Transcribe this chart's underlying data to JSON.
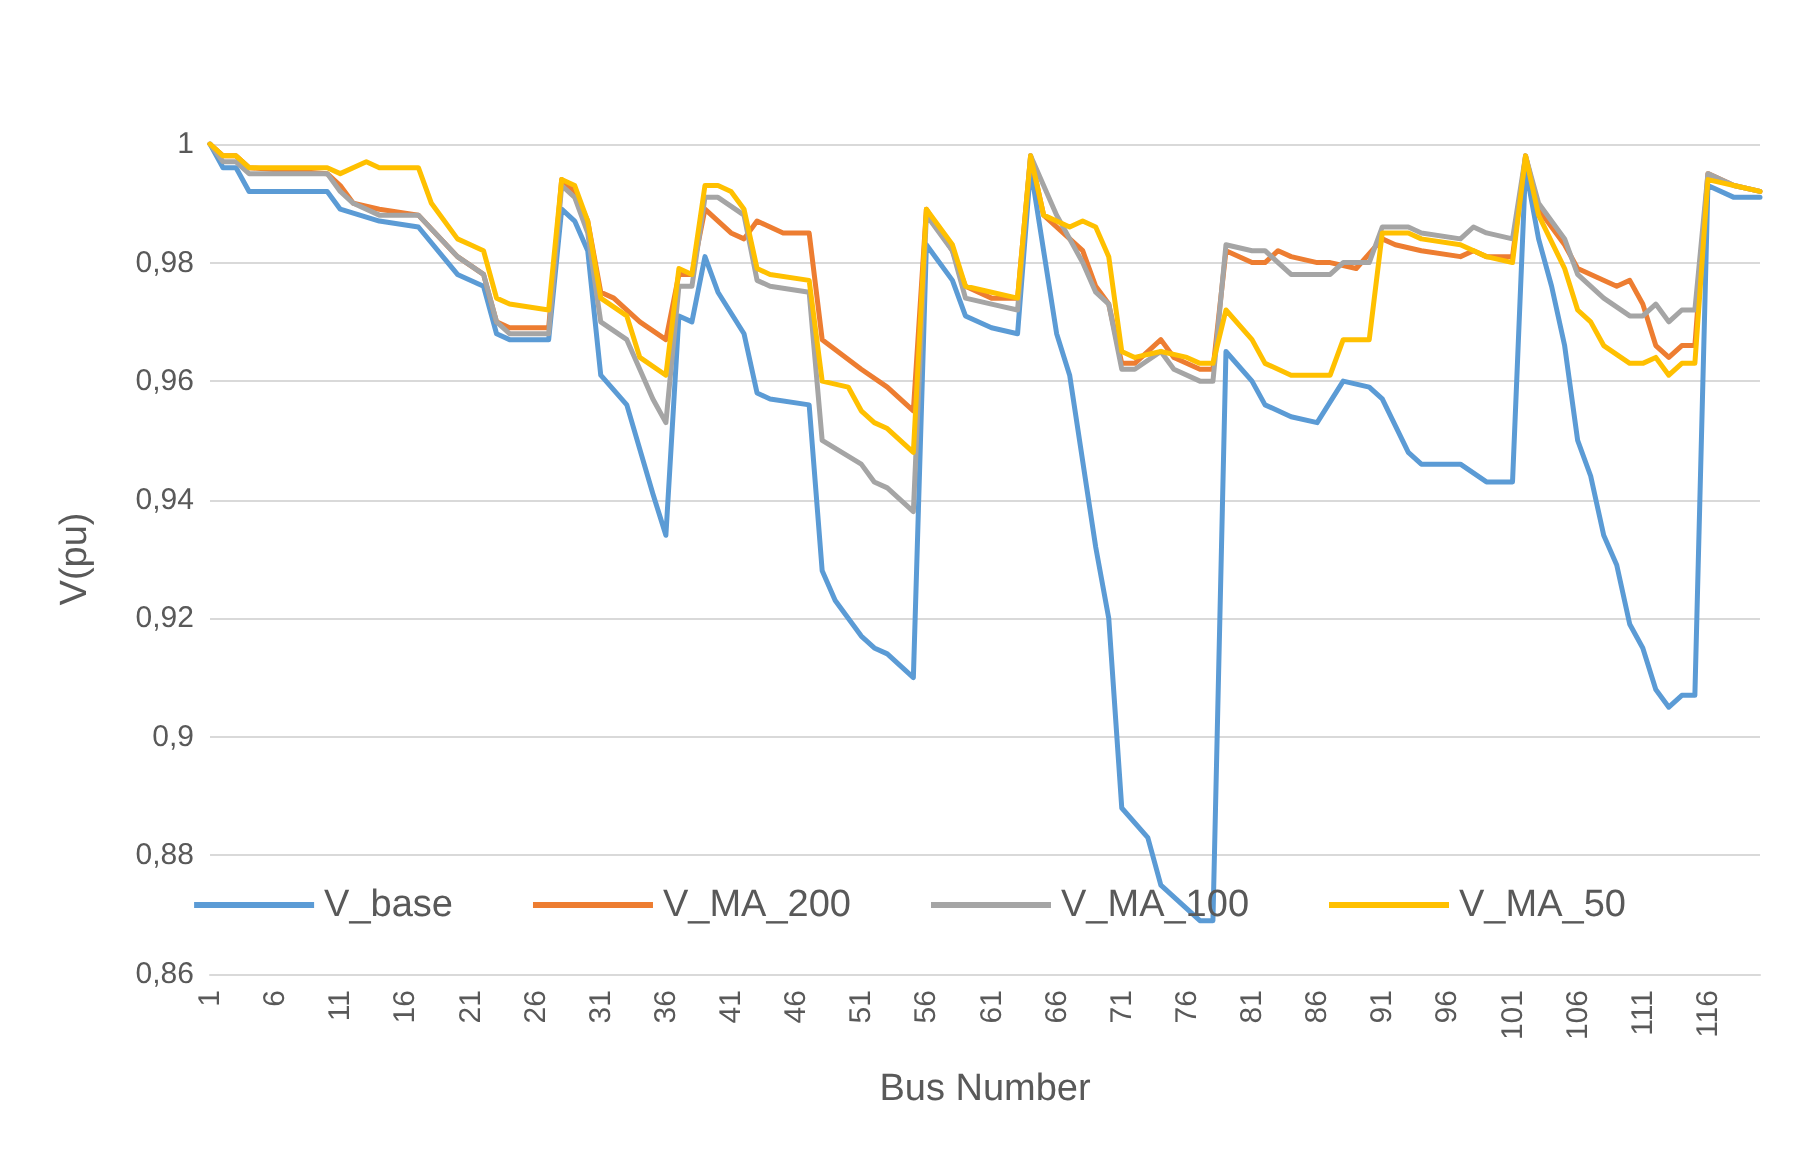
{
  "chart_data": {
    "type": "line",
    "xlabel": "Bus Number",
    "ylabel": "V(pu)",
    "xlim": [
      1,
      120
    ],
    "xticks": [
      1,
      6,
      11,
      16,
      21,
      26,
      31,
      36,
      41,
      46,
      51,
      56,
      61,
      66,
      71,
      76,
      81,
      86,
      91,
      96,
      101,
      106,
      111,
      116
    ],
    "ylim": [
      0.86,
      1
    ],
    "yticks": [
      {
        "value": 0.86,
        "label": "0,86"
      },
      {
        "value": 0.88,
        "label": "0,88"
      },
      {
        "value": 0.9,
        "label": "0,9"
      },
      {
        "value": 0.92,
        "label": "0,92"
      },
      {
        "value": 0.94,
        "label": "0,94"
      },
      {
        "value": 0.96,
        "label": "0,96"
      },
      {
        "value": 0.98,
        "label": "0,98"
      },
      1
    ],
    "grid": "y",
    "legend": "bottom",
    "marker": "none",
    "line_style": "solid",
    "series": [
      {
        "name": "V_base",
        "color": "#5b9bd5",
        "x": [
          1,
          2,
          3,
          4,
          10,
          11,
          14,
          17,
          20,
          22,
          23,
          24,
          27,
          28,
          29,
          30,
          31,
          33,
          35,
          36,
          37,
          38,
          39,
          40,
          42,
          43,
          44,
          47,
          48,
          49,
          51,
          52,
          53,
          55,
          56,
          58,
          59,
          61,
          63,
          64,
          66,
          67,
          69,
          70,
          71,
          73,
          74,
          77,
          78,
          79,
          81,
          82,
          84,
          86,
          88,
          90,
          91,
          93,
          94,
          97,
          99,
          101,
          102,
          103,
          104,
          105,
          106,
          107,
          108,
          109,
          110,
          111,
          112,
          113,
          114,
          115,
          116,
          118,
          120
        ],
        "values": [
          1.0,
          0.996,
          0.996,
          0.992,
          0.992,
          0.989,
          0.987,
          0.986,
          0.978,
          0.976,
          0.968,
          0.967,
          0.967,
          0.989,
          0.987,
          0.982,
          0.961,
          0.956,
          0.941,
          0.934,
          0.971,
          0.97,
          0.981,
          0.975,
          0.968,
          0.958,
          0.957,
          0.956,
          0.928,
          0.923,
          0.917,
          0.915,
          0.914,
          0.91,
          0.983,
          0.977,
          0.971,
          0.969,
          0.968,
          0.996,
          0.968,
          0.961,
          0.932,
          0.92,
          0.888,
          0.883,
          0.875,
          0.869,
          0.869,
          0.965,
          0.96,
          0.956,
          0.954,
          0.953,
          0.96,
          0.959,
          0.957,
          0.948,
          0.946,
          0.946,
          0.943,
          0.943,
          0.996,
          0.984,
          0.976,
          0.966,
          0.95,
          0.944,
          0.934,
          0.929,
          0.919,
          0.915,
          0.908,
          0.905,
          0.907,
          0.907,
          0.993,
          0.991,
          0.991
        ]
      },
      {
        "name": "V_MA_200",
        "color": "#ed7d31",
        "x": [
          1,
          2,
          3,
          4,
          10,
          11,
          12,
          14,
          17,
          20,
          22,
          23,
          24,
          27,
          28,
          29,
          30,
          31,
          32,
          34,
          36,
          37,
          38,
          39,
          41,
          42,
          43,
          45,
          47,
          48,
          51,
          53,
          55,
          56,
          58,
          59,
          61,
          63,
          64,
          65,
          68,
          69,
          70,
          71,
          72,
          74,
          75,
          77,
          78,
          79,
          81,
          82,
          83,
          84,
          86,
          87,
          89,
          91,
          92,
          94,
          97,
          98,
          99,
          101,
          102,
          103,
          105,
          106,
          109,
          110,
          111,
          112,
          113,
          114,
          115,
          116,
          118,
          120
        ],
        "values": [
          1.0,
          0.998,
          0.998,
          0.996,
          0.995,
          0.993,
          0.99,
          0.989,
          0.988,
          0.981,
          0.978,
          0.97,
          0.969,
          0.969,
          0.994,
          0.992,
          0.987,
          0.975,
          0.974,
          0.97,
          0.967,
          0.978,
          0.978,
          0.989,
          0.985,
          0.984,
          0.987,
          0.985,
          0.985,
          0.967,
          0.962,
          0.959,
          0.955,
          0.989,
          0.982,
          0.976,
          0.974,
          0.974,
          0.998,
          0.988,
          0.982,
          0.976,
          0.973,
          0.963,
          0.963,
          0.967,
          0.964,
          0.962,
          0.962,
          0.982,
          0.98,
          0.98,
          0.982,
          0.981,
          0.98,
          0.98,
          0.979,
          0.984,
          0.983,
          0.982,
          0.981,
          0.982,
          0.981,
          0.981,
          0.998,
          0.989,
          0.983,
          0.979,
          0.976,
          0.977,
          0.973,
          0.966,
          0.964,
          0.966,
          0.966,
          0.995,
          0.993,
          0.992
        ]
      },
      {
        "name": "V_MA_100",
        "color": "#a5a5a5",
        "x": [
          1,
          2,
          3,
          4,
          10,
          11,
          12,
          14,
          17,
          20,
          22,
          23,
          24,
          27,
          28,
          29,
          30,
          31,
          33,
          35,
          36,
          37,
          38,
          39,
          40,
          42,
          43,
          44,
          47,
          48,
          51,
          52,
          53,
          55,
          56,
          58,
          59,
          61,
          63,
          64,
          66,
          68,
          69,
          70,
          71,
          72,
          74,
          75,
          77,
          78,
          79,
          81,
          82,
          83,
          84,
          86,
          87,
          88,
          90,
          91,
          93,
          94,
          97,
          98,
          99,
          101,
          102,
          103,
          105,
          106,
          108,
          110,
          111,
          112,
          113,
          114,
          115,
          116,
          118,
          120
        ],
        "values": [
          1.0,
          0.997,
          0.997,
          0.995,
          0.995,
          0.992,
          0.99,
          0.988,
          0.988,
          0.981,
          0.978,
          0.97,
          0.968,
          0.968,
          0.993,
          0.991,
          0.985,
          0.97,
          0.967,
          0.957,
          0.953,
          0.976,
          0.976,
          0.991,
          0.991,
          0.988,
          0.977,
          0.976,
          0.975,
          0.95,
          0.946,
          0.943,
          0.942,
          0.938,
          0.988,
          0.982,
          0.974,
          0.973,
          0.972,
          0.998,
          0.988,
          0.98,
          0.975,
          0.973,
          0.962,
          0.962,
          0.965,
          0.962,
          0.96,
          0.96,
          0.983,
          0.982,
          0.982,
          0.98,
          0.978,
          0.978,
          0.978,
          0.98,
          0.98,
          0.986,
          0.986,
          0.985,
          0.984,
          0.986,
          0.985,
          0.984,
          0.998,
          0.99,
          0.984,
          0.978,
          0.974,
          0.971,
          0.971,
          0.973,
          0.97,
          0.972,
          0.972,
          0.995,
          0.993,
          0.992
        ]
      },
      {
        "name": "V_MA_50",
        "color": "#ffc000",
        "x": [
          1,
          2,
          3,
          4,
          10,
          11,
          13,
          14,
          17,
          18,
          20,
          21,
          22,
          23,
          24,
          27,
          28,
          29,
          30,
          31,
          33,
          34,
          36,
          37,
          38,
          39,
          40,
          41,
          42,
          43,
          44,
          47,
          48,
          50,
          51,
          52,
          53,
          55,
          56,
          58,
          59,
          61,
          63,
          64,
          65,
          67,
          68,
          69,
          70,
          71,
          72,
          74,
          76,
          77,
          78,
          79,
          81,
          82,
          84,
          86,
          87,
          88,
          90,
          91,
          93,
          94,
          97,
          99,
          101,
          102,
          103,
          105,
          106,
          107,
          108,
          110,
          111,
          112,
          113,
          114,
          115,
          116,
          118,
          120
        ],
        "values": [
          1.0,
          0.998,
          0.998,
          0.996,
          0.996,
          0.995,
          0.997,
          0.996,
          0.996,
          0.99,
          0.984,
          0.983,
          0.982,
          0.974,
          0.973,
          0.972,
          0.994,
          0.993,
          0.987,
          0.974,
          0.971,
          0.964,
          0.961,
          0.979,
          0.978,
          0.993,
          0.993,
          0.992,
          0.989,
          0.979,
          0.978,
          0.977,
          0.96,
          0.959,
          0.955,
          0.953,
          0.952,
          0.948,
          0.989,
          0.983,
          0.976,
          0.975,
          0.974,
          0.998,
          0.988,
          0.986,
          0.987,
          0.986,
          0.981,
          0.965,
          0.964,
          0.965,
          0.964,
          0.963,
          0.963,
          0.972,
          0.967,
          0.963,
          0.961,
          0.961,
          0.961,
          0.967,
          0.967,
          0.985,
          0.985,
          0.984,
          0.983,
          0.981,
          0.98,
          0.998,
          0.988,
          0.979,
          0.972,
          0.97,
          0.966,
          0.963,
          0.963,
          0.964,
          0.961,
          0.963,
          0.963,
          0.994,
          0.993,
          0.992
        ]
      }
    ]
  }
}
